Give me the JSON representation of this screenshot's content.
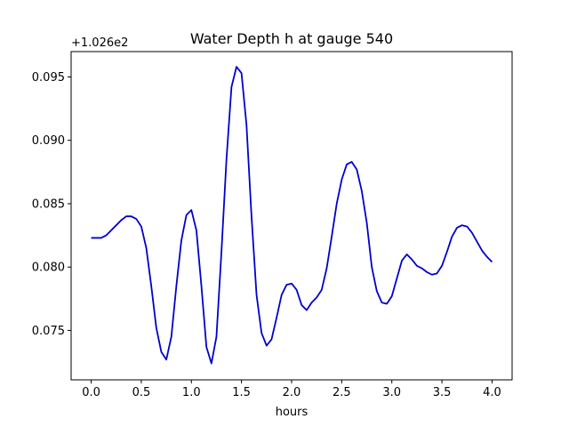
{
  "chart_data": {
    "type": "line",
    "title": "Water Depth h at gauge 540",
    "xlabel": "hours",
    "ylabel": "",
    "y_offset_label": "+1.026e2",
    "xlim": [
      -0.2,
      4.2
    ],
    "ylim": [
      0.0711,
      0.097
    ],
    "xticks": [
      0.0,
      0.5,
      1.0,
      1.5,
      2.0,
      2.5,
      3.0,
      3.5,
      4.0
    ],
    "xtick_labels": [
      "0.0",
      "0.5",
      "1.0",
      "1.5",
      "2.0",
      "2.5",
      "3.0",
      "3.5",
      "4.0"
    ],
    "yticks": [
      0.075,
      0.08,
      0.085,
      0.09,
      0.095
    ],
    "ytick_labels": [
      "0.075",
      "0.080",
      "0.085",
      "0.090",
      "0.095"
    ],
    "grid": false,
    "series": [
      {
        "color": "#0000cc",
        "x": [
          0.0,
          0.05,
          0.1,
          0.15,
          0.2,
          0.25,
          0.3,
          0.35,
          0.4,
          0.45,
          0.5,
          0.55,
          0.6,
          0.65,
          0.7,
          0.75,
          0.8,
          0.85,
          0.9,
          0.95,
          1.0,
          1.05,
          1.1,
          1.15,
          1.2,
          1.25,
          1.3,
          1.35,
          1.4,
          1.45,
          1.5,
          1.55,
          1.6,
          1.65,
          1.7,
          1.75,
          1.8,
          1.85,
          1.9,
          1.95,
          2.0,
          2.05,
          2.1,
          2.15,
          2.2,
          2.25,
          2.3,
          2.35,
          2.4,
          2.45,
          2.5,
          2.55,
          2.6,
          2.65,
          2.7,
          2.75,
          2.8,
          2.85,
          2.9,
          2.95,
          3.0,
          3.05,
          3.1,
          3.15,
          3.2,
          3.25,
          3.3,
          3.35,
          3.4,
          3.45,
          3.5,
          3.55,
          3.6,
          3.65,
          3.7,
          3.75,
          3.8,
          3.85,
          3.9,
          3.95,
          4.0
        ],
        "values": [
          0.0823,
          0.0823,
          0.0823,
          0.0825,
          0.0829,
          0.0833,
          0.0837,
          0.084,
          0.084,
          0.0838,
          0.0832,
          0.0815,
          0.0785,
          0.0752,
          0.0733,
          0.0727,
          0.0745,
          0.0785,
          0.0821,
          0.0841,
          0.0845,
          0.0829,
          0.0785,
          0.0737,
          0.0724,
          0.0745,
          0.0812,
          0.0885,
          0.0942,
          0.0958,
          0.0953,
          0.0912,
          0.084,
          0.0778,
          0.0748,
          0.0738,
          0.0743,
          0.076,
          0.0778,
          0.0786,
          0.0787,
          0.0782,
          0.077,
          0.0766,
          0.0772,
          0.0776,
          0.0782,
          0.0799,
          0.0824,
          0.085,
          0.0869,
          0.0881,
          0.0883,
          0.0877,
          0.086,
          0.0835,
          0.08,
          0.0781,
          0.0772,
          0.0771,
          0.0777,
          0.0791,
          0.0805,
          0.081,
          0.0806,
          0.0801,
          0.0799,
          0.0796,
          0.0794,
          0.0795,
          0.0801,
          0.0812,
          0.0824,
          0.0831,
          0.0833,
          0.0832,
          0.0827,
          0.082,
          0.0813,
          0.0808,
          0.0804
        ]
      }
    ]
  }
}
